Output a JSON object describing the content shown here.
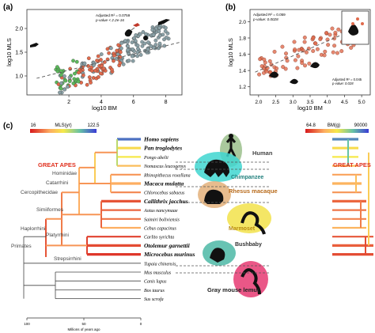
{
  "panel_a": {
    "label": "(a)",
    "ylabel": "log10 MLS",
    "xlabel": "log10 BM",
    "ylim": [
      0.6,
      2.4
    ],
    "xlim": [
      -0.6,
      9.0
    ],
    "yticks": [
      "1.0",
      "1.5",
      "2.0"
    ],
    "xticks": [
      "2",
      "4",
      "6",
      "8"
    ],
    "stat1": "Adjusted R² = 0.0759",
    "stat2": "p-value < 2.2e-16"
  },
  "panel_b": {
    "label": "(b)",
    "ylabel": "log10 MLS",
    "xlabel": "log10 BM",
    "ylim": [
      1.1,
      2.15
    ],
    "xlim": [
      1.75,
      5.25
    ],
    "yticks": [
      "1.2",
      "1.4",
      "1.6",
      "1.8",
      "2.0"
    ],
    "xticks": [
      "2.0",
      "2.5",
      "3.0",
      "3.5",
      "4.0",
      "4.5",
      "5.0"
    ],
    "stat1": "Adjusted R² = 0.059",
    "stat2": "p-value: 0.0028",
    "stat3": "Adjusted R² = 0.045",
    "stat4": "p-value: 0.028"
  },
  "panel_c": {
    "label": "(c)",
    "mls_scale": {
      "min": "16",
      "label": "MLS(yr)",
      "max": "122.5"
    },
    "bm_scale": {
      "min": "64.8",
      "label": "BM(g)",
      "max": "90000"
    },
    "great_apes_left": "GREAT APES",
    "great_apes_right": "GREAT APES",
    "clades": [
      "Hominidae",
      "Catarrhini",
      "Cercopithecidae",
      "Simiiformes",
      "Platyrrhini",
      "Haplorrhini",
      "Primates",
      "Strepsirrhini"
    ],
    "species": [
      "Homo sapiens",
      "Pan troglodytes",
      "Pongo abelii",
      "Nomascus leucogenys",
      "Rhinopithecus roxellana",
      "Macaca mulatta",
      "Chlorocebus sabaeus",
      "Callithrix jacchus",
      "Aotus nancymaae",
      "Saimiri boliviensis",
      "Cebus capucinus",
      "Carlito syrichta",
      "Otolemur garnettii",
      "Microcebus murinus",
      "Tupaia chinensis",
      "Mus musculus",
      "Canis lupus",
      "Bos taurus",
      "Sus scrofa"
    ],
    "bold_species": [
      "Homo sapiens",
      "Pan troglodytes",
      "Macaca mulatta",
      "Callithrix jacchus",
      "Otolemur garnettii",
      "Microcebus murinus"
    ],
    "animals": [
      "Human",
      "Chimpanzee",
      "Rhesus macaque",
      "Marmoset",
      "Bushbaby",
      "Gray mouse lemur"
    ],
    "time_axis": {
      "ticks": [
        "100",
        "50",
        "0"
      ],
      "label": "Millions of years ago"
    }
  },
  "colors": {
    "scatter_green": "#5cb85c",
    "scatter_orange": "#e06a4c",
    "scatter_gray": "#8aa0a6",
    "human_oval": "#9bbf8c",
    "chimp_oval": "#3fd6d0",
    "macaque_oval": "#e3b07a",
    "marmoset_oval": "#f2e24a",
    "bushbaby_oval": "#4cb8a6",
    "lemur_oval": "#e8457a",
    "great_apes": "#e0301e",
    "clade_label": "#c97a00"
  }
}
